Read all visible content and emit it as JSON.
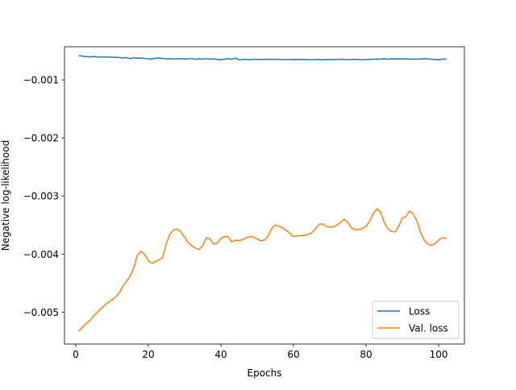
{
  "chart_data": {
    "type": "line",
    "xlabel": "Epochs",
    "ylabel": "Negative log-likelihood",
    "xlim": [
      -3.1,
      107.1
    ],
    "ylim": [
      -0.00555,
      -0.00043
    ],
    "xticks": [
      0,
      20,
      40,
      60,
      80,
      100
    ],
    "yticks": [
      -0.005,
      -0.004,
      -0.003,
      -0.002,
      -0.001
    ],
    "ytick_labels": [
      "−0.005",
      "−0.004",
      "−0.003",
      "−0.002",
      "−0.001"
    ],
    "grid": false,
    "legend_position": "lower right",
    "series": [
      {
        "name": "Loss",
        "color": "#1f77b4",
        "x": [
          1,
          2,
          3,
          4,
          5,
          6,
          7,
          8,
          9,
          10,
          11,
          12,
          13,
          14,
          15,
          16,
          17,
          18,
          19,
          20,
          21,
          22,
          23,
          24,
          25,
          26,
          27,
          28,
          29,
          30,
          31,
          32,
          33,
          34,
          35,
          36,
          37,
          38,
          39,
          40,
          41,
          42,
          43,
          44,
          45,
          46,
          47,
          48,
          49,
          50,
          51,
          52,
          53,
          54,
          55,
          56,
          57,
          58,
          59,
          60,
          61,
          62,
          63,
          64,
          65,
          66,
          67,
          68,
          69,
          70,
          71,
          72,
          73,
          74,
          75,
          76,
          77,
          78,
          79,
          80,
          81,
          82,
          83,
          84,
          85,
          86,
          87,
          88,
          89,
          90,
          91,
          92,
          93,
          94,
          95,
          96,
          97,
          98,
          99,
          100,
          101,
          102
        ],
        "y": [
          -0.000585,
          -0.000595,
          -0.0006,
          -0.000605,
          -0.000598,
          -0.000605,
          -0.000608,
          -0.000605,
          -0.000608,
          -0.00061,
          -0.000612,
          -0.000615,
          -0.000625,
          -0.000618,
          -0.000635,
          -0.00062,
          -0.000628,
          -0.000625,
          -0.000632,
          -0.000638,
          -0.00064,
          -0.000628,
          -0.000625,
          -0.000632,
          -0.000638,
          -0.000635,
          -0.00064,
          -0.000638,
          -0.000635,
          -0.000642,
          -0.000638,
          -0.000632,
          -0.000645,
          -0.000638,
          -0.000645,
          -0.000632,
          -0.000645,
          -0.000638,
          -0.000648,
          -0.000652,
          -0.000645,
          -0.000635,
          -0.000645,
          -0.000625,
          -0.000655,
          -0.000648,
          -0.000648,
          -0.000652,
          -0.000648,
          -0.000645,
          -0.00065,
          -0.000648,
          -0.000645,
          -0.000648,
          -0.000645,
          -0.000648,
          -0.00065,
          -0.000652,
          -0.00065,
          -0.000648,
          -0.00065,
          -0.00065,
          -0.000648,
          -0.000652,
          -0.000655,
          -0.000652,
          -0.000648,
          -0.000655,
          -0.00065,
          -0.000648,
          -0.000652,
          -0.000648,
          -0.000645,
          -0.000648,
          -0.000652,
          -0.00065,
          -0.000645,
          -0.00065,
          -0.000655,
          -0.00065,
          -0.000648,
          -0.000645,
          -0.000642,
          -0.000645,
          -0.000635,
          -0.000645,
          -0.00064,
          -0.000638,
          -0.000642,
          -0.000638,
          -0.00064,
          -0.000642,
          -0.000645,
          -0.000642,
          -0.00064,
          -0.000635,
          -0.00064,
          -0.000645,
          -0.00065,
          -0.000655,
          -0.000645,
          -0.00064
        ]
      },
      {
        "name": "Val. loss",
        "color": "#ff7f0e",
        "x": [
          1,
          2,
          3,
          4,
          5,
          6,
          7,
          8,
          9,
          10,
          11,
          12,
          13,
          14,
          15,
          16,
          17,
          18,
          19,
          20,
          21,
          22,
          23,
          24,
          25,
          26,
          27,
          28,
          29,
          30,
          31,
          32,
          33,
          34,
          35,
          36,
          37,
          38,
          39,
          40,
          41,
          42,
          43,
          44,
          45,
          46,
          47,
          48,
          49,
          50,
          51,
          52,
          53,
          54,
          55,
          56,
          57,
          58,
          59,
          60,
          61,
          62,
          63,
          64,
          65,
          66,
          67,
          68,
          69,
          70,
          71,
          72,
          73,
          74,
          75,
          76,
          77,
          78,
          79,
          80,
          81,
          82,
          83,
          84,
          85,
          86,
          87,
          88,
          89,
          90,
          91,
          92,
          93,
          94,
          95,
          96,
          97,
          98,
          99,
          100,
          101,
          102
        ],
        "y": [
          -0.00532,
          -0.00525,
          -0.00519,
          -0.00514,
          -0.00506,
          -0.005,
          -0.00494,
          -0.00488,
          -0.00483,
          -0.00479,
          -0.00474,
          -0.00467,
          -0.00455,
          -0.00447,
          -0.00438,
          -0.00423,
          -0.00402,
          -0.00395,
          -0.00401,
          -0.00411,
          -0.00416,
          -0.00413,
          -0.0041,
          -0.00405,
          -0.00381,
          -0.00365,
          -0.00358,
          -0.00357,
          -0.00362,
          -0.00371,
          -0.0038,
          -0.00386,
          -0.0039,
          -0.00392,
          -0.00385,
          -0.00372,
          -0.00374,
          -0.00383,
          -0.00381,
          -0.00373,
          -0.0037,
          -0.0037,
          -0.00379,
          -0.00376,
          -0.00377,
          -0.00375,
          -0.00372,
          -0.0037,
          -0.00371,
          -0.00374,
          -0.00377,
          -0.00376,
          -0.00369,
          -0.00356,
          -0.0035,
          -0.00352,
          -0.00355,
          -0.00359,
          -0.00364,
          -0.0037,
          -0.00369,
          -0.00368,
          -0.00368,
          -0.00366,
          -0.00364,
          -0.00357,
          -0.00349,
          -0.00348,
          -0.00352,
          -0.00354,
          -0.00353,
          -0.0035,
          -0.00345,
          -0.0034,
          -0.00346,
          -0.00355,
          -0.00358,
          -0.00358,
          -0.00356,
          -0.00352,
          -0.00343,
          -0.0033,
          -0.00322,
          -0.00328,
          -0.00345,
          -0.00357,
          -0.00361,
          -0.00362,
          -0.00352,
          -0.00338,
          -0.00335,
          -0.00326,
          -0.00331,
          -0.00343,
          -0.00362,
          -0.00376,
          -0.00383,
          -0.00385,
          -0.00382,
          -0.00376,
          -0.00372,
          -0.00373
        ]
      }
    ]
  }
}
